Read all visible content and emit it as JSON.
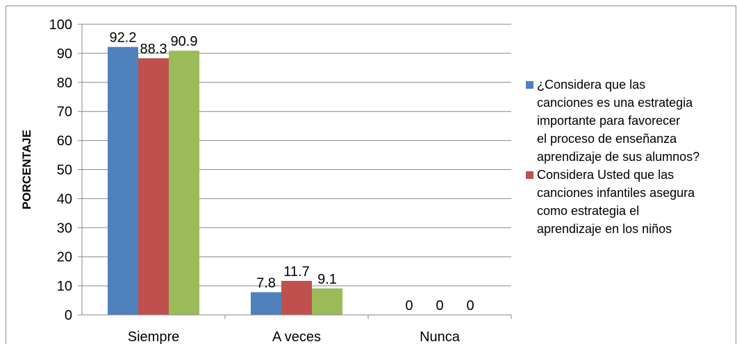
{
  "chart_data": {
    "type": "bar",
    "title": "",
    "xlabel": "",
    "ylabel": "PORCENTAJE",
    "ylim": [
      0,
      100
    ],
    "yticks": [
      0,
      10,
      20,
      30,
      40,
      50,
      60,
      70,
      80,
      90,
      100
    ],
    "categories": [
      "Siempre",
      "A veces",
      "Nunca"
    ],
    "grid": true,
    "legend_position": "right",
    "series": [
      {
        "name": "¿Considera  que las canciones es una estrategia importante para favorecer el proceso de enseñanza aprendizaje de sus alumnos?",
        "color": "#4f81bd",
        "values": [
          92.2,
          7.8,
          0
        ],
        "labels": [
          "92.2",
          "7.8",
          "0"
        ]
      },
      {
        "name": "Considera Usted que las canciones infantiles asegura como estrategia el aprendizaje en los niños",
        "color": "#c0504d",
        "values": [
          88.3,
          11.7,
          0
        ],
        "labels": [
          "88.3",
          "11.7",
          "0"
        ]
      },
      {
        "name": "",
        "color": "#9bbb59",
        "values": [
          90.9,
          9.1,
          0
        ],
        "labels": [
          "90.9",
          "9.1",
          "0"
        ]
      }
    ],
    "legend_lines": [
      [
        "¿Considera  que las",
        "canciones es una estrategia",
        "importante para favorecer",
        "el proceso de enseñanza",
        "aprendizaje de sus alumnos?"
      ],
      [
        "Considera Usted que las",
        "canciones infantiles asegura",
        "como estrategia el",
        "aprendizaje en los niños"
      ]
    ]
  }
}
